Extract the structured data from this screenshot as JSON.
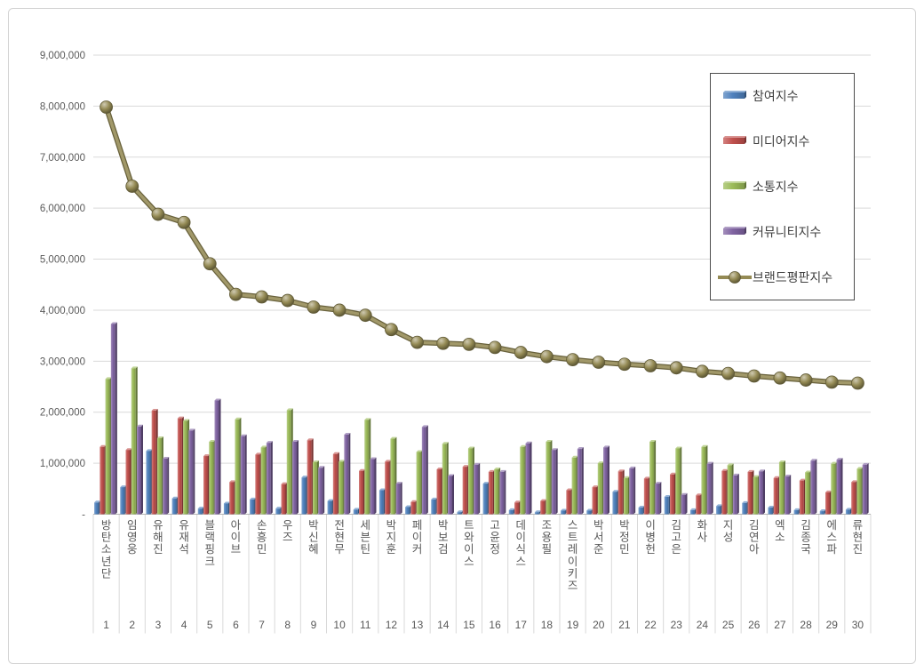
{
  "chart_data": {
    "type": "bar",
    "note": "grouped 3D bars with overlaid line series",
    "categories": [
      "방탄소년단",
      "임영웅",
      "유해진",
      "유재석",
      "블랙핑크",
      "아이브",
      "손흥민",
      "우즈",
      "박신혜",
      "전현무",
      "세븐틴",
      "박지훈",
      "페이커",
      "박보검",
      "트와이스",
      "고윤정",
      "데이식스",
      "조용필",
      "스트레이키즈",
      "박서준",
      "박정민",
      "이병헌",
      "김고은",
      "화사",
      "지성",
      "김연아",
      "엑소",
      "김종국",
      "에스파",
      "류현진"
    ],
    "ranks": [
      "1",
      "2",
      "3",
      "4",
      "5",
      "6",
      "7",
      "8",
      "9",
      "10",
      "11",
      "12",
      "13",
      "14",
      "15",
      "16",
      "17",
      "18",
      "19",
      "20",
      "21",
      "22",
      "23",
      "24",
      "25",
      "26",
      "27",
      "28",
      "29",
      "30"
    ],
    "series": [
      {
        "name": "참여지수",
        "type": "bar",
        "color": "#4F81BD",
        "values": [
          230000,
          530000,
          1240000,
          310000,
          110000,
          210000,
          290000,
          110000,
          720000,
          260000,
          90000,
          470000,
          140000,
          290000,
          40000,
          600000,
          80000,
          40000,
          70000,
          70000,
          440000,
          130000,
          340000,
          80000,
          160000,
          220000,
          130000,
          80000,
          60000,
          90000
        ]
      },
      {
        "name": "미디어지수",
        "type": "bar",
        "color": "#C0504D",
        "values": [
          1320000,
          1260000,
          2030000,
          1880000,
          1140000,
          630000,
          1170000,
          590000,
          1450000,
          1180000,
          850000,
          1030000,
          240000,
          880000,
          930000,
          830000,
          230000,
          260000,
          470000,
          530000,
          840000,
          700000,
          780000,
          370000,
          850000,
          830000,
          710000,
          660000,
          430000,
          630000
        ]
      },
      {
        "name": "소통지수",
        "type": "bar",
        "color": "#9BBB59",
        "values": [
          2650000,
          2860000,
          1490000,
          1830000,
          1420000,
          1860000,
          1310000,
          2040000,
          1020000,
          1030000,
          1850000,
          1480000,
          1220000,
          1380000,
          1290000,
          880000,
          1320000,
          1420000,
          1110000,
          1000000,
          710000,
          1420000,
          1290000,
          1320000,
          960000,
          730000,
          1020000,
          820000,
          990000,
          890000
        ]
      },
      {
        "name": "커뮤니티지수",
        "type": "bar",
        "color": "#8064A2",
        "values": [
          3730000,
          1720000,
          1090000,
          1640000,
          2230000,
          1530000,
          1400000,
          1420000,
          910000,
          1560000,
          1080000,
          600000,
          1710000,
          750000,
          970000,
          830000,
          1390000,
          1260000,
          1280000,
          1310000,
          900000,
          600000,
          380000,
          990000,
          760000,
          840000,
          740000,
          1050000,
          1070000,
          970000
        ]
      },
      {
        "name": "브랜드평판지수",
        "type": "line",
        "color": "#948A54",
        "values": [
          7980000,
          6430000,
          5880000,
          5720000,
          4910000,
          4310000,
          4260000,
          4190000,
          4060000,
          4000000,
          3900000,
          3620000,
          3370000,
          3350000,
          3330000,
          3270000,
          3170000,
          3090000,
          3030000,
          2980000,
          2940000,
          2910000,
          2870000,
          2800000,
          2760000,
          2710000,
          2670000,
          2630000,
          2590000,
          2570000
        ]
      }
    ],
    "y_axis": {
      "min": 0,
      "max": 9000000,
      "step": 1000000,
      "labels": [
        "-",
        "1,000,000",
        "2,000,000",
        "3,000,000",
        "4,000,000",
        "5,000,000",
        "6,000,000",
        "7,000,000",
        "8,000,000",
        "9,000,000"
      ]
    },
    "grid": true,
    "legend_position": "top-right",
    "title": "",
    "xlabel": "",
    "ylabel": ""
  },
  "colors": {
    "background": "#ffffff",
    "frame_border": "#d3d3d3",
    "gridline": "#d9d9d9",
    "axis_line": "#b3b3b3",
    "column_line": "#d9d9d9",
    "tick_text": "#595959",
    "legend_border": "#4d4d4d",
    "legend_text": "#404040"
  }
}
